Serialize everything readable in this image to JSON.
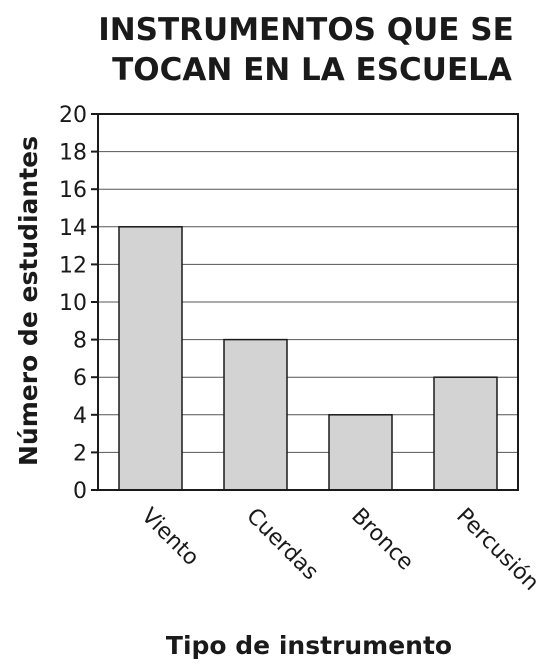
{
  "chart_data": {
    "type": "bar",
    "title_lines": [
      "INSTRUMENTOS QUE SE",
      "TOCAN EN LA ESCUELA"
    ],
    "title": "INSTRUMENTOS QUE SE TOCAN EN LA ESCUELA",
    "xlabel": "Tipo de instrumento",
    "ylabel": "Número de estudiantes",
    "categories": [
      "Viento",
      "Cuerdas",
      "Bronce",
      "Percusión"
    ],
    "values": [
      14,
      8,
      4,
      6
    ],
    "ylim": [
      0,
      20
    ],
    "yticks": [
      "0",
      "2",
      "4",
      "6",
      "8",
      "10",
      "12",
      "14",
      "16",
      "18",
      "20"
    ],
    "grid": true,
    "bar_color": "#d3d3d3",
    "bar_edge_color": "#1a1a1a"
  }
}
